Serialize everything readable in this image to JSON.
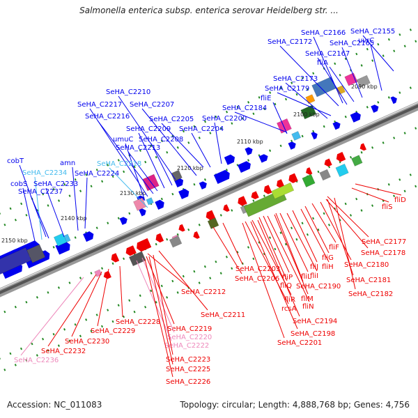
{
  "title": "Salmonella enterica subsp. enterica serovar Heidelberg str. ...",
  "footer": {
    "accession": "Accession: NC_011083",
    "summary": "Topology: circular; Length: 4,888,768 bp; Genes: 4,756"
  },
  "colors": {
    "forward": "#0000ee",
    "reverse": "#ee0000",
    "pseudo_forward": "#44bbee",
    "pseudo_reverse": "#ee88bb",
    "backbone": "#777777",
    "tick": "#228822"
  },
  "kbp_labels": [
    "2090 kbp",
    "2100 kbp",
    "2110 kbp",
    "2120 kbp",
    "2130 kbp",
    "2140 kbp",
    "2150 kbp"
  ],
  "forward_labels": [
    {
      "text": "SeHA_C2166",
      "color": "#0000ee"
    },
    {
      "text": "SeHA_C2155",
      "color": "#0000ee"
    },
    {
      "text": "SeHA_C2172",
      "color": "#0000ee"
    },
    {
      "text": "SeHA_C2165",
      "color": "#0000ee"
    },
    {
      "text": "uvrC",
      "color": "#0000ee"
    },
    {
      "text": "SeHA_C2167",
      "color": "#0000ee"
    },
    {
      "text": "fliA",
      "color": "#0000ee"
    },
    {
      "text": "SeHA_C2173",
      "color": "#0000ee"
    },
    {
      "text": "SeHA_C2179",
      "color": "#0000ee"
    },
    {
      "text": "SeHA_C2210",
      "color": "#0000ee"
    },
    {
      "text": "fliE",
      "color": "#0000ee"
    },
    {
      "text": "SeHA_C2217",
      "color": "#0000ee"
    },
    {
      "text": "SeHA_C2207",
      "color": "#0000ee"
    },
    {
      "text": "SeHA_C2184",
      "color": "#0000ee"
    },
    {
      "text": "SeHA_C2216",
      "color": "#0000ee"
    },
    {
      "text": "SeHA_C2205",
      "color": "#0000ee"
    },
    {
      "text": "SeHA_C2200",
      "color": "#0000ee"
    },
    {
      "text": "SeHA_C2209",
      "color": "#0000ee"
    },
    {
      "text": "SeHA_C2204",
      "color": "#0000ee"
    },
    {
      "text": "umuC",
      "color": "#0000ee"
    },
    {
      "text": "SeHA_C2208",
      "color": "#0000ee"
    },
    {
      "text": "SeHA_C2213",
      "color": "#0000ee"
    },
    {
      "text": "cobT",
      "color": "#0000ee"
    },
    {
      "text": "amn",
      "color": "#0000ee"
    },
    {
      "text": "SeHA_C2218",
      "color": "#44bbee"
    },
    {
      "text": "SeHA_C2234",
      "color": "#44bbee"
    },
    {
      "text": "SeHA_C2224",
      "color": "#0000ee"
    },
    {
      "text": "cobS",
      "color": "#0000ee"
    },
    {
      "text": "SeHA_C2233",
      "color": "#0000ee"
    },
    {
      "text": "SeHA_C2237",
      "color": "#0000ee"
    }
  ],
  "reverse_labels": [
    {
      "text": "fliD",
      "color": "#ee0000"
    },
    {
      "text": "fliS",
      "color": "#ee0000"
    },
    {
      "text": "SeHA_C2177",
      "color": "#ee0000"
    },
    {
      "text": "fliF",
      "color": "#ee0000"
    },
    {
      "text": "SeHA_C2178",
      "color": "#ee0000"
    },
    {
      "text": "fliG",
      "color": "#ee0000"
    },
    {
      "text": "fliH",
      "color": "#ee0000"
    },
    {
      "text": "SeHA_C2180",
      "color": "#ee0000"
    },
    {
      "text": "SeHA_C2203",
      "color": "#ee0000"
    },
    {
      "text": "fliJ",
      "color": "#ee0000"
    },
    {
      "text": "fliP",
      "color": "#ee0000"
    },
    {
      "text": "fliI",
      "color": "#ee0000"
    },
    {
      "text": "SeHA_C2206",
      "color": "#ee0000"
    },
    {
      "text": "fliL",
      "color": "#ee0000"
    },
    {
      "text": "SeHA_C2181",
      "color": "#ee0000"
    },
    {
      "text": "fliQ",
      "color": "#ee0000"
    },
    {
      "text": "SeHA_C2190",
      "color": "#ee0000"
    },
    {
      "text": "SeHA_C2212",
      "color": "#ee0000"
    },
    {
      "text": "fliM",
      "color": "#ee0000"
    },
    {
      "text": "SeHA_C2182",
      "color": "#ee0000"
    },
    {
      "text": "fliR",
      "color": "#ee0000"
    },
    {
      "text": "fliN",
      "color": "#ee0000"
    },
    {
      "text": "rcsA",
      "color": "#ee0000"
    },
    {
      "text": "SeHA_C2211",
      "color": "#ee0000"
    },
    {
      "text": "SeHA_C2228",
      "color": "#ee0000"
    },
    {
      "text": "SeHA_C2194",
      "color": "#ee0000"
    },
    {
      "text": "SeHA_C2219",
      "color": "#ee0000"
    },
    {
      "text": "SeHA_C2229",
      "color": "#ee0000"
    },
    {
      "text": "SeHA_C2198",
      "color": "#ee0000"
    },
    {
      "text": "SeHA_C2220",
      "color": "#ee88bb"
    },
    {
      "text": "SeHA_C2230",
      "color": "#ee0000"
    },
    {
      "text": "SeHA_C2201",
      "color": "#ee0000"
    },
    {
      "text": "SeHA_C2222",
      "color": "#ee88bb"
    },
    {
      "text": "SeHA_C2232",
      "color": "#ee0000"
    },
    {
      "text": "SeHA_C2223",
      "color": "#ee0000"
    },
    {
      "text": "SeHA_C2236",
      "color": "#ee88bb"
    },
    {
      "text": "SeHA_C2225",
      "color": "#ee0000"
    },
    {
      "text": "SeHA_C2226",
      "color": "#ee0000"
    }
  ]
}
